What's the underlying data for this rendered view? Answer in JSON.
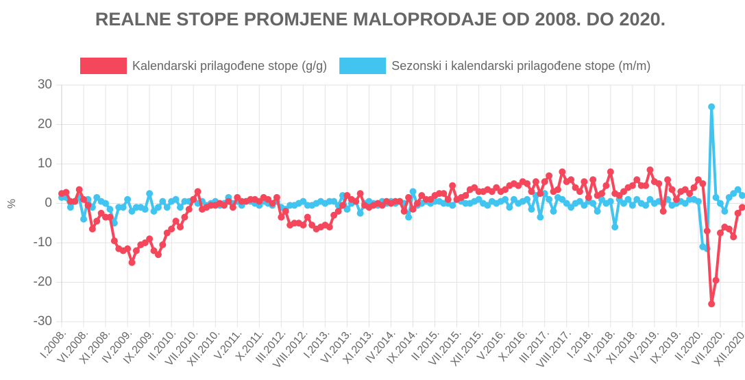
{
  "chart_data": {
    "type": "line",
    "title": "REALNE STOPE PROMJENE MALOPRODAJE OD 2008. DO 2020.",
    "y_label": "%",
    "categories": [
      "I.2008.",
      null,
      null,
      null,
      null,
      "VI.2008.",
      null,
      null,
      null,
      null,
      "XI.2008.",
      null,
      null,
      null,
      null,
      "IV.2009.",
      null,
      null,
      null,
      null,
      "IX.2009.",
      null,
      null,
      null,
      null,
      "II.2010.",
      null,
      null,
      null,
      null,
      "VII.2010.",
      null,
      null,
      null,
      null,
      "XII.2010.",
      null,
      null,
      null,
      null,
      "V.2011.",
      null,
      null,
      null,
      null,
      "X.2011.",
      null,
      null,
      null,
      null,
      "III.2012.",
      null,
      null,
      null,
      null,
      "VIII.2012.",
      null,
      null,
      null,
      null,
      "I.2013.",
      null,
      null,
      null,
      null,
      "VI.2013.",
      null,
      null,
      null,
      null,
      "XI.2013.",
      null,
      null,
      null,
      null,
      "IV.2014.",
      null,
      null,
      null,
      null,
      "IX.2014.",
      null,
      null,
      null,
      null,
      "II.2015.",
      null,
      null,
      null,
      null,
      "VII.2015.",
      null,
      null,
      null,
      null,
      "XII.2015.",
      null,
      null,
      null,
      null,
      "V.2016.",
      null,
      null,
      null,
      null,
      "X.2016.",
      null,
      null,
      null,
      null,
      "III.2017.",
      null,
      null,
      null,
      null,
      "VIII.2017.",
      null,
      null,
      null,
      null,
      "I.2018.",
      null,
      null,
      null,
      null,
      "VI.2018.",
      null,
      null,
      null,
      null,
      "XI.2018.",
      null,
      null,
      null,
      null,
      "IV.2019.",
      null,
      null,
      null,
      null,
      "IX.2019.",
      null,
      null,
      null,
      null,
      "II.2020.",
      null,
      null,
      null,
      null,
      "VII.2020.",
      null,
      null,
      null,
      null,
      "XII.2020."
    ],
    "series": [
      {
        "name": "Kalendarski prilagođene stope (g/g)",
        "color": "#f5475b",
        "values": [
          2.5,
          2.8,
          0.5,
          0.5,
          3.5,
          1,
          -0.5,
          -6.5,
          -4.5,
          -2.5,
          -3.5,
          -3.5,
          -9.5,
          -11.5,
          -12,
          -11.5,
          -15,
          -12,
          -10.5,
          -10,
          -9,
          -12,
          -13,
          -10.5,
          -7.5,
          -6.5,
          -4.5,
          -6,
          -3.5,
          -1.5,
          1,
          3,
          -1.5,
          -1,
          -0.5,
          -0.5,
          0,
          -0.5,
          0.5,
          -1,
          1.5,
          0.5,
          0.5,
          1,
          1,
          0.5,
          1.5,
          1,
          0,
          1.5,
          -3.5,
          -2,
          -5.5,
          -5,
          -5,
          -5.5,
          -3.5,
          -5.5,
          -6.5,
          -6,
          -5.5,
          -6,
          -3,
          -2,
          -0.5,
          2,
          1,
          0.5,
          2.5,
          -0.5,
          -1,
          -0.5,
          0,
          -0.5,
          0.5,
          0,
          0.5,
          0.5,
          -2,
          1.5,
          -1.5,
          0,
          2,
          1,
          1,
          2,
          2.5,
          2.5,
          1,
          4.5,
          1,
          1.5,
          2,
          3.5,
          4,
          3,
          3,
          3.5,
          3,
          4,
          3,
          3.5,
          4.5,
          5,
          4.5,
          5.5,
          5,
          3,
          5.5,
          2.5,
          5.5,
          7,
          3,
          3.5,
          8,
          5.5,
          6,
          4,
          3,
          5.5,
          1.5,
          6,
          2,
          2.5,
          4.5,
          8,
          2.5,
          2,
          3,
          4,
          4.5,
          6,
          4.5,
          4.5,
          8.5,
          5.5,
          5,
          -2,
          6,
          3.5,
          1,
          3,
          3.5,
          2.5,
          4,
          6,
          5,
          -7,
          -25.5,
          -19.5,
          -7.5,
          -6,
          -6.5,
          -8.5,
          -2.5,
          -1
        ]
      },
      {
        "name": "Sezonski i kalendarski prilagođene stope (m/m)",
        "color": "#41c4ef",
        "values": [
          1.5,
          1.5,
          -1,
          0.5,
          1.5,
          -4,
          1,
          -1,
          1.5,
          0.5,
          0,
          -1.5,
          -5,
          -1,
          -1,
          1,
          -2,
          -1,
          -1,
          -1.5,
          2.5,
          -2,
          -1,
          0.5,
          -1,
          0.5,
          1,
          -1,
          0.5,
          0.5,
          1,
          0,
          0.5,
          -0.5,
          0,
          0.5,
          -0.5,
          0,
          1.5,
          0,
          0.5,
          -0.5,
          0.5,
          0.5,
          0,
          -0.5,
          0.5,
          0,
          -0.5,
          0.5,
          -1,
          -1.5,
          -0.5,
          -0.5,
          0,
          0.5,
          -0.5,
          -0.5,
          0,
          0.5,
          0,
          0.5,
          0.5,
          -0.5,
          2,
          -1.5,
          0,
          0.5,
          -2.5,
          0,
          0.5,
          0,
          -0.5,
          0.5,
          0,
          0.5,
          0,
          0.5,
          0,
          -3.5,
          3,
          -0.5,
          0,
          0.5,
          0,
          0.5,
          0.5,
          0,
          0,
          -0.5,
          1,
          0.5,
          0,
          0,
          0.5,
          1,
          0,
          -0.5,
          0.5,
          0,
          0.5,
          1,
          -1,
          1,
          0,
          0.5,
          1,
          -1.5,
          2,
          -3.5,
          2.5,
          1,
          -2,
          1.5,
          1,
          0,
          -1,
          0,
          0.5,
          -0.5,
          0.5,
          0,
          -2,
          1,
          0,
          0.5,
          -6,
          1,
          0,
          1,
          -0.5,
          1,
          0,
          -0.5,
          1,
          0,
          0.5,
          0,
          1,
          -0.5,
          0,
          0.5,
          0,
          1,
          1,
          0.5,
          -11,
          -11.5,
          24.5,
          1.5,
          0,
          -2,
          1.5,
          2.5,
          3.5,
          2
        ]
      }
    ],
    "ylim": [
      -30,
      30
    ],
    "yticks": [
      -30,
      -20,
      -10,
      0,
      10,
      20,
      30
    ],
    "grid": true
  }
}
